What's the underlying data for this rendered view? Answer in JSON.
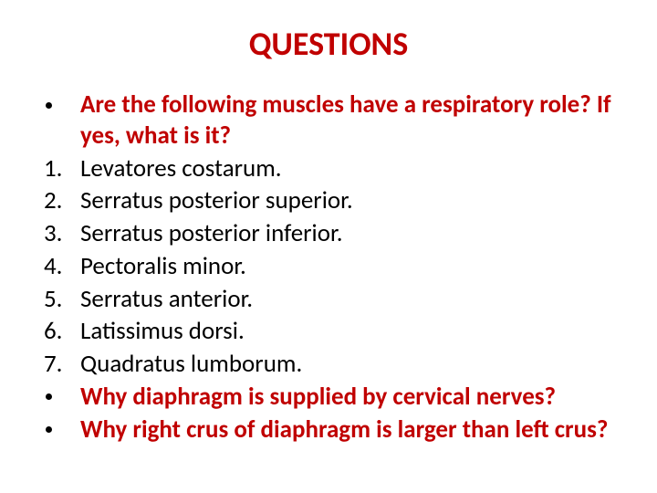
{
  "title": {
    "text": "QUESTIONS",
    "color": "#c00000",
    "fontsize": 36
  },
  "body": {
    "fontsize": 27,
    "text_color": "#000000",
    "bold_color": "#c00000",
    "marker_color": "#000000",
    "items": [
      {
        "marker_type": "bullet",
        "marker": "•",
        "text": "Are the following muscles have a respiratory role? If yes, what is it?",
        "bold": true
      },
      {
        "marker_type": "number",
        "marker": "1.",
        "text": "Levatores costarum.",
        "bold": false
      },
      {
        "marker_type": "number",
        "marker": "2.",
        "text": "Serratus posterior superior.",
        "bold": false
      },
      {
        "marker_type": "number",
        "marker": "3.",
        "text": "Serratus posterior inferior.",
        "bold": false
      },
      {
        "marker_type": "number",
        "marker": "4.",
        "text": "Pectoralis minor.",
        "bold": false
      },
      {
        "marker_type": "number",
        "marker": "5.",
        "text": "Serratus anterior.",
        "bold": false
      },
      {
        "marker_type": "number",
        "marker": "6.",
        "text": "Latissimus dorsi.",
        "bold": false
      },
      {
        "marker_type": "number",
        "marker": "7.",
        "text": "Quadratus lumborum.",
        "bold": false
      },
      {
        "marker_type": "bullet",
        "marker": "•",
        "text": "Why diaphragm is supplied by cervical nerves?",
        "bold": true
      },
      {
        "marker_type": "bullet",
        "marker": "•",
        "text": "Why right crus of diaphragm is larger than left crus?",
        "bold": true
      }
    ]
  }
}
